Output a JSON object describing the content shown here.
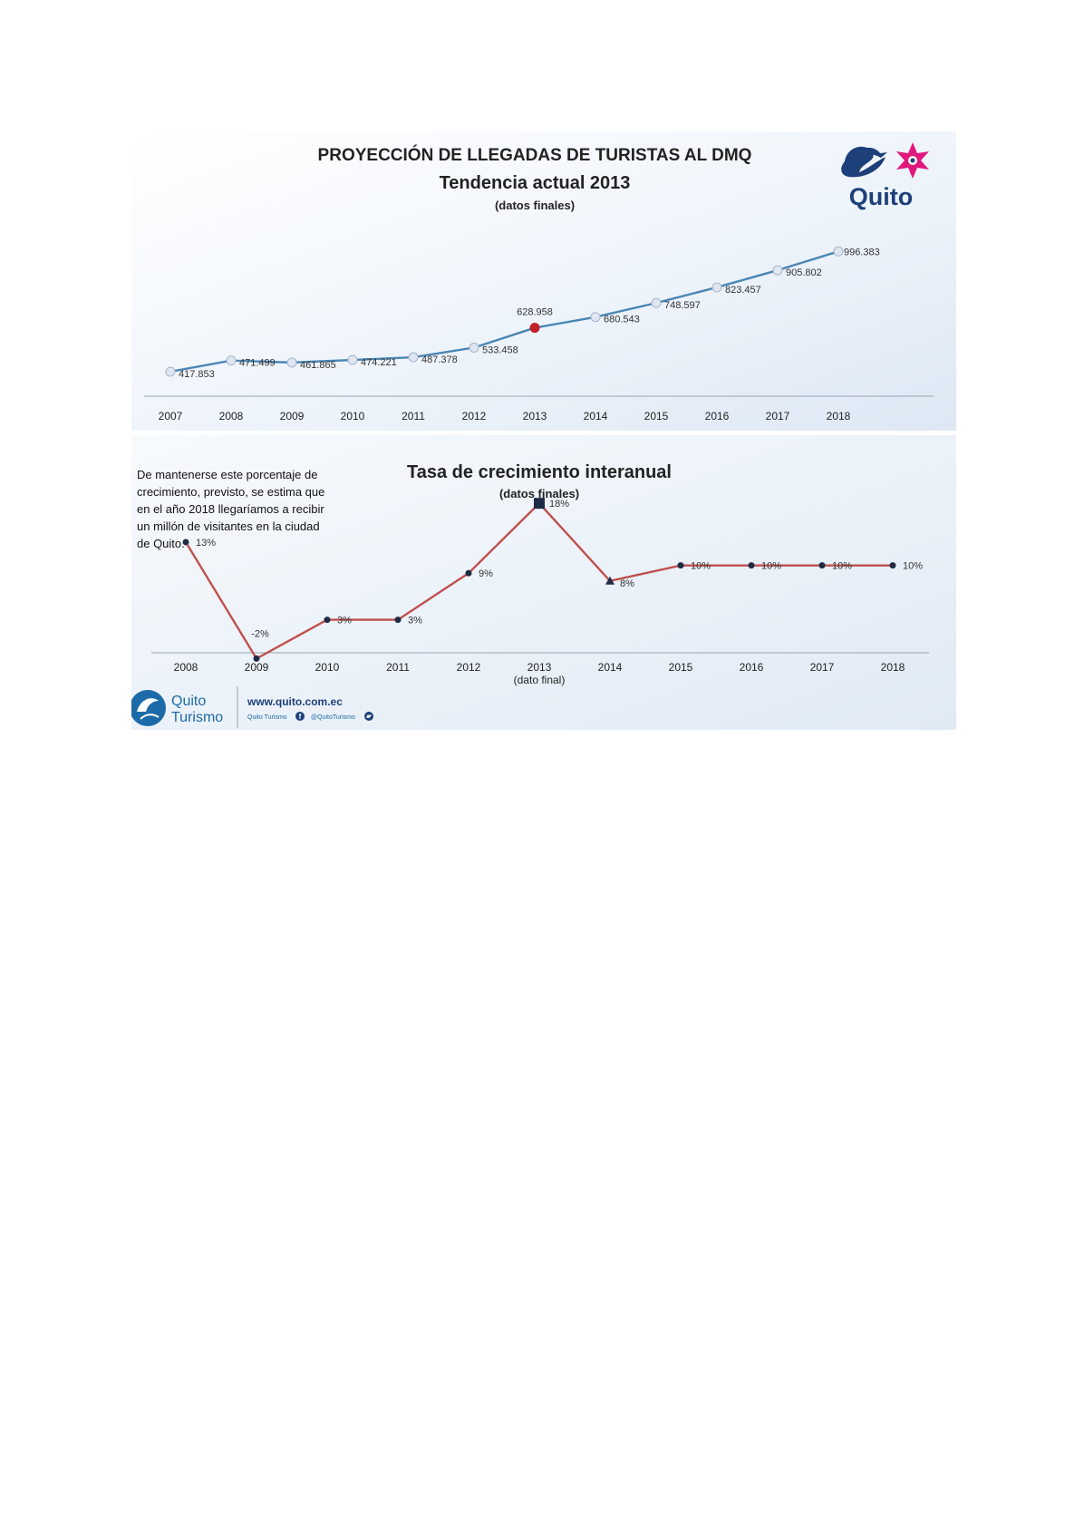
{
  "chart_data": [
    {
      "type": "line",
      "title": "PROYECCIÓN DE LLEGADAS DE TURISTAS AL DMQ",
      "subtitle": "Tendencia actual 2013",
      "note": "(datos finales)",
      "categories": [
        "2007",
        "2008",
        "2009",
        "2010",
        "2011",
        "2012",
        "2013",
        "2014",
        "2015",
        "2016",
        "2017",
        "2018"
      ],
      "values": [
        417853,
        471499,
        461865,
        474221,
        487378,
        533458,
        628958,
        680543,
        748597,
        823457,
        905802,
        996383
      ],
      "value_labels": [
        "417.853",
        "471.499",
        "461.865",
        "474.221",
        "487.378",
        "533.458",
        "628.958",
        "680.543",
        "748.597",
        "823.457",
        "905.802",
        "996.383"
      ],
      "highlight_category": "2013",
      "ylim": [
        300000,
        1050000
      ],
      "grid": false,
      "line_color": "#4b86b4",
      "highlight_color": "#c0202a"
    },
    {
      "type": "line",
      "title": "Tasa de crecimiento interanual",
      "note": "(datos finales)",
      "categories": [
        "2008",
        "2009",
        "2010",
        "2011",
        "2012",
        "2013",
        "2014",
        "2015",
        "2016",
        "2017",
        "2018"
      ],
      "category_sublabels": {
        "2013": "(dato final)"
      },
      "values": [
        13,
        -2,
        3,
        3,
        9,
        18,
        8,
        10,
        10,
        10,
        10
      ],
      "value_labels": [
        "13%",
        "-2%",
        "3%",
        "3%",
        "9%",
        "18%",
        "8%",
        "10%",
        "10%",
        "10%",
        "10%"
      ],
      "ylim": [
        -3,
        20
      ],
      "grid": false,
      "line_color": "#c0504d",
      "marker_color": "#1f2a44"
    }
  ],
  "annotation": "De mantenerse este porcentaje de crecimiento, previsto, se estima que en el año 2018 llegaríamos a recibir un millón de visitantes en la ciudad de Quito.",
  "brand": {
    "logo_text": "Quito",
    "footer_name_1": "Quito",
    "footer_name_2": "Turismo",
    "website": "www.quito.com.ec",
    "social_facebook": "Quito Turismo",
    "social_twitter": "@QuitoTurismo"
  },
  "colors": {
    "brand_blue": "#1d3f7a",
    "brand_magenta": "#e0197d",
    "panel_bg": "#e8f1fa"
  }
}
